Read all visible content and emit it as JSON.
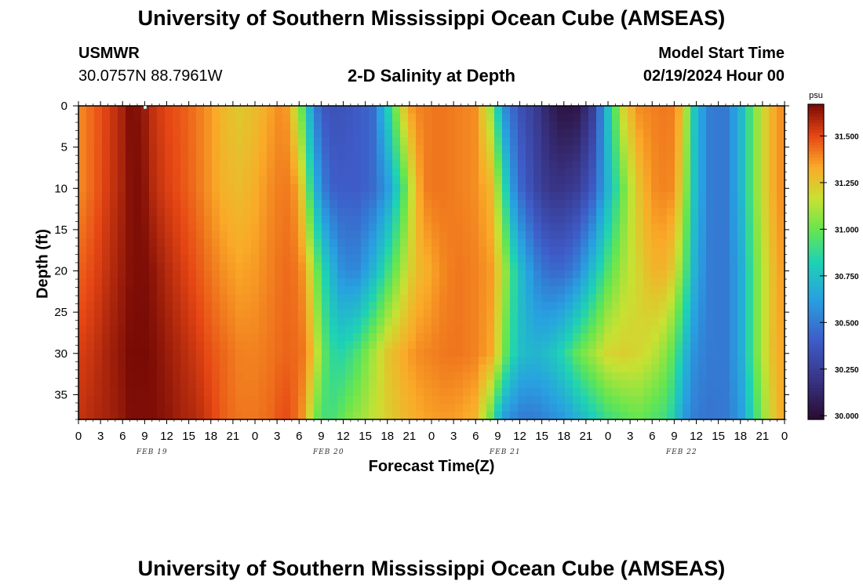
{
  "page": {
    "title": "University of Southern Mississippi Ocean Cube (AMSEAS)",
    "footer_title": "University of Southern Mississippi Ocean Cube (AMSEAS)",
    "station": "USMWR",
    "coordinates": "30.0757N  88.7961W",
    "model_label": "Model Start Time",
    "model_start": "02/19/2024 Hour 00"
  },
  "chart_data": {
    "type": "heatmap",
    "title": "2-D Salinity at Depth",
    "xlabel": "Forecast Time(Z)",
    "ylabel": "Depth (ft)",
    "x_range_hours": [
      0,
      96
    ],
    "x_tick_step_hours": 3,
    "x_tick_labels": [
      "0",
      "3",
      "6",
      "9",
      "12",
      "15",
      "18",
      "21",
      "0",
      "3",
      "6",
      "9",
      "12",
      "15",
      "18",
      "21",
      "0",
      "3",
      "6",
      "9",
      "12",
      "15",
      "18",
      "21",
      "0",
      "3",
      "6",
      "9",
      "12",
      "15",
      "18",
      "21",
      "0"
    ],
    "date_labels": [
      {
        "label": "FEB 19",
        "hour": 10
      },
      {
        "label": "FEB 20",
        "hour": 34
      },
      {
        "label": "FEB 21",
        "hour": 58
      },
      {
        "label": "FEB 22",
        "hour": 82
      }
    ],
    "y_range_ft": [
      0,
      38
    ],
    "y_tick_labels": [
      0,
      5,
      10,
      15,
      20,
      25,
      30,
      35
    ],
    "colorbar": {
      "unit": "psu",
      "range": [
        29.98,
        31.67
      ],
      "tick_values": [
        30.0,
        30.25,
        30.5,
        30.75,
        31.0,
        31.25,
        31.5
      ],
      "tick_labels": [
        "30.000",
        "30.250",
        "30.500",
        "30.750",
        "31.000",
        "31.250",
        "31.500"
      ]
    },
    "salinity_profiles": {
      "description": "Approximate salinity (psu) at depth levels [0, 10, 20, 30, 38] ft for hourly forecast steps",
      "depth_levels_ft": [
        0,
        10,
        20,
        30,
        38
      ],
      "hours": [
        0,
        2,
        4,
        6,
        7,
        8,
        9,
        10,
        12,
        14,
        16,
        18,
        20,
        22,
        24,
        26,
        28,
        30,
        31,
        32,
        33,
        34,
        35,
        36,
        37,
        38,
        40,
        42,
        44,
        45,
        46,
        47,
        48,
        50,
        52,
        54,
        56,
        57,
        58,
        59,
        60,
        62,
        64,
        66,
        68,
        70,
        72,
        74,
        76,
        78,
        80,
        81,
        82,
        83,
        84,
        86,
        88,
        90,
        92,
        94,
        96
      ],
      "values": [
        [
          31.38,
          31.38,
          31.45,
          31.52,
          31.55
        ],
        [
          31.45,
          31.45,
          31.5,
          31.55,
          31.58
        ],
        [
          31.52,
          31.53,
          31.56,
          31.6,
          31.6
        ],
        [
          31.6,
          31.6,
          31.62,
          31.64,
          31.63
        ],
        [
          31.66,
          31.65,
          31.65,
          31.67,
          31.66
        ],
        [
          31.65,
          31.66,
          31.66,
          31.67,
          31.66
        ],
        [
          31.62,
          31.64,
          31.66,
          31.67,
          31.66
        ],
        [
          31.56,
          31.58,
          31.64,
          31.66,
          31.66
        ],
        [
          31.5,
          31.52,
          31.58,
          31.62,
          31.64
        ],
        [
          31.47,
          31.48,
          31.53,
          31.58,
          31.6
        ],
        [
          31.42,
          31.43,
          31.48,
          31.54,
          31.58
        ],
        [
          31.36,
          31.36,
          31.42,
          31.48,
          31.52
        ],
        [
          31.28,
          31.3,
          31.37,
          31.44,
          31.45
        ],
        [
          31.24,
          31.28,
          31.34,
          31.4,
          31.42
        ],
        [
          31.28,
          31.32,
          31.36,
          31.4,
          31.42
        ],
        [
          31.34,
          31.38,
          31.4,
          31.42,
          31.44
        ],
        [
          31.4,
          31.42,
          31.44,
          31.45,
          31.5
        ],
        [
          31.1,
          31.35,
          31.42,
          31.44,
          31.43
        ],
        [
          30.8,
          31.05,
          31.32,
          31.4,
          31.3
        ],
        [
          30.55,
          30.75,
          31.1,
          31.25,
          31.05
        ],
        [
          30.4,
          30.55,
          30.9,
          31.05,
          30.95
        ],
        [
          30.35,
          30.45,
          30.75,
          30.9,
          30.9
        ],
        [
          30.35,
          30.4,
          30.65,
          30.85,
          30.95
        ],
        [
          30.36,
          30.4,
          30.55,
          30.85,
          31.0
        ],
        [
          30.38,
          30.4,
          30.55,
          30.9,
          31.05
        ],
        [
          30.4,
          30.4,
          30.55,
          30.95,
          31.08
        ],
        [
          30.45,
          30.45,
          30.7,
          31.1,
          31.15
        ],
        [
          30.8,
          30.6,
          30.9,
          31.25,
          31.22
        ],
        [
          31.2,
          30.9,
          31.1,
          31.32,
          31.28
        ],
        [
          31.35,
          31.1,
          31.2,
          31.35,
          31.3
        ],
        [
          31.4,
          31.3,
          31.28,
          31.38,
          31.32
        ],
        [
          31.4,
          31.4,
          31.3,
          31.39,
          31.34
        ],
        [
          31.42,
          31.42,
          31.34,
          31.4,
          31.35
        ],
        [
          31.42,
          31.42,
          31.4,
          31.42,
          31.36
        ],
        [
          31.4,
          31.4,
          31.42,
          31.42,
          31.34
        ],
        [
          31.38,
          31.38,
          31.4,
          31.4,
          31.3
        ],
        [
          31.1,
          31.3,
          31.36,
          31.34,
          31.0
        ],
        [
          30.8,
          31.1,
          31.25,
          31.2,
          30.75
        ],
        [
          30.55,
          30.85,
          31.1,
          31.0,
          30.6
        ],
        [
          30.45,
          30.6,
          30.9,
          30.85,
          30.55
        ],
        [
          30.35,
          30.45,
          30.75,
          30.75,
          30.5
        ],
        [
          30.25,
          30.3,
          30.55,
          30.7,
          30.5
        ],
        [
          30.1,
          30.2,
          30.45,
          30.75,
          30.55
        ],
        [
          30.02,
          30.2,
          30.45,
          30.85,
          30.6
        ],
        [
          30.05,
          30.25,
          30.55,
          31.0,
          30.7
        ],
        [
          30.25,
          30.4,
          30.75,
          31.1,
          30.8
        ],
        [
          30.75,
          30.7,
          30.95,
          31.2,
          30.9
        ],
        [
          31.2,
          31.0,
          31.1,
          31.22,
          30.95
        ],
        [
          31.38,
          31.25,
          31.2,
          31.2,
          31.0
        ],
        [
          31.4,
          31.38,
          31.3,
          31.15,
          30.95
        ],
        [
          31.42,
          31.4,
          31.3,
          31.05,
          30.9
        ],
        [
          31.4,
          31.38,
          31.2,
          30.95,
          30.8
        ],
        [
          31.3,
          31.2,
          31.05,
          30.8,
          30.65
        ],
        [
          31.0,
          30.95,
          30.85,
          30.65,
          30.55
        ],
        [
          30.7,
          30.7,
          30.65,
          30.55,
          30.5
        ],
        [
          30.5,
          30.5,
          30.5,
          30.5,
          30.48
        ],
        [
          30.5,
          30.5,
          30.5,
          30.5,
          30.5
        ],
        [
          30.7,
          30.7,
          30.65,
          30.65,
          30.6
        ],
        [
          31.05,
          31.05,
          31.0,
          31.0,
          30.9
        ],
        [
          31.3,
          31.3,
          31.25,
          31.25,
          31.2
        ],
        [
          31.4,
          31.4,
          31.38,
          31.36,
          31.35
        ]
      ]
    }
  }
}
